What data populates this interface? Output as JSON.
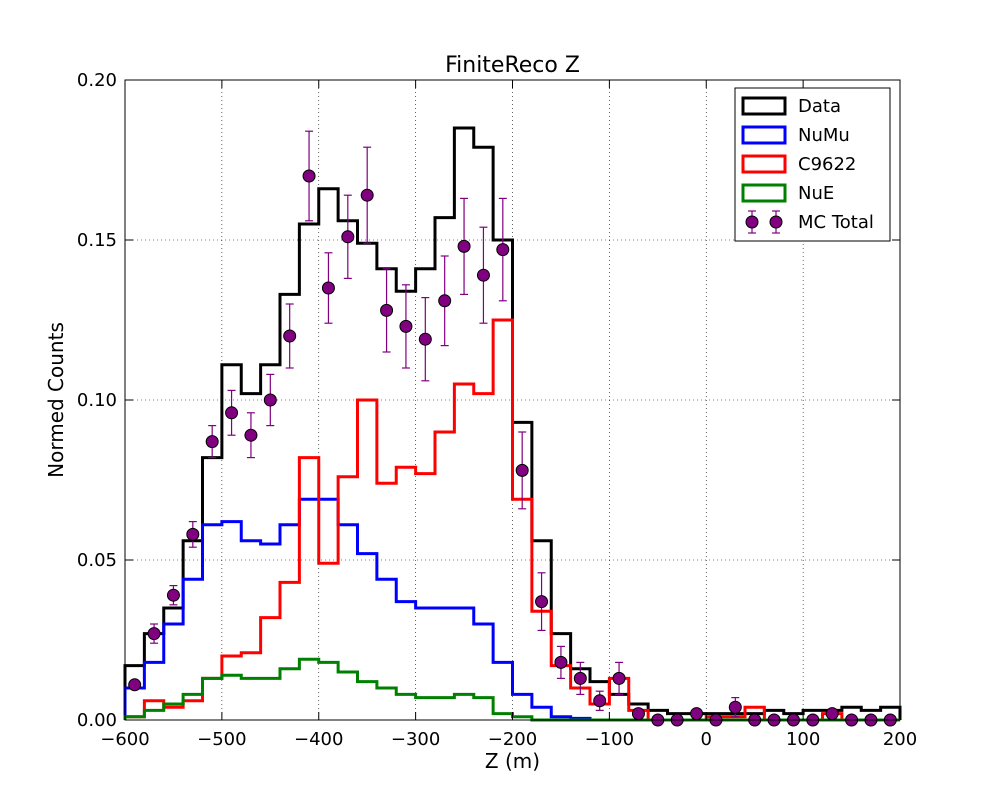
{
  "chart_data": {
    "type": "histogram",
    "title": "FiniteReco Z",
    "xlabel": "Z (m)",
    "ylabel": "Normed Counts",
    "xlim": [
      -600,
      200
    ],
    "ylim": [
      0,
      0.2
    ],
    "xticks": [
      -600,
      -500,
      -400,
      -300,
      -200,
      -100,
      0,
      100,
      200
    ],
    "xtick_labels": [
      "−600",
      "−500",
      "−400",
      "−300",
      "−200",
      "−100",
      "0",
      "100",
      "200"
    ],
    "yticks": [
      0,
      0.05,
      0.1,
      0.15,
      0.2
    ],
    "ytick_labels": [
      "0.00",
      "0.05",
      "0.10",
      "0.15",
      "0.20"
    ],
    "grid": true,
    "legend_position": "top-right",
    "bin_edges": [
      -600,
      -580,
      -560,
      -540,
      -520,
      -500,
      -480,
      -460,
      -440,
      -420,
      -400,
      -380,
      -360,
      -340,
      -320,
      -300,
      -280,
      -260,
      -240,
      -220,
      -200,
      -180,
      -160,
      -140,
      -120,
      -100,
      -80,
      -60,
      -40,
      -20,
      0,
      20,
      40,
      60,
      80,
      100,
      120,
      140,
      160,
      180,
      200
    ],
    "series": [
      {
        "name": "Data",
        "kind": "step",
        "color": "#000000",
        "values": [
          0.017,
          0.027,
          0.035,
          0.056,
          0.082,
          0.111,
          0.102,
          0.111,
          0.133,
          0.155,
          0.166,
          0.156,
          0.149,
          0.141,
          0.134,
          0.141,
          0.157,
          0.185,
          0.179,
          0.15,
          0.093,
          0.056,
          0.027,
          0.016,
          0.012,
          0.008,
          0.005,
          0.003,
          0.002,
          0.002,
          0.002,
          0.002,
          0.002,
          0.003,
          0.002,
          0.003,
          0.003,
          0.004,
          0.003,
          0.004
        ]
      },
      {
        "name": "NuMu",
        "kind": "step",
        "color": "#0000ff",
        "values": [
          0.01,
          0.018,
          0.03,
          0.044,
          0.061,
          0.062,
          0.056,
          0.055,
          0.061,
          0.069,
          0.069,
          0.061,
          0.052,
          0.044,
          0.037,
          0.035,
          0.035,
          0.035,
          0.03,
          0.018,
          0.008,
          0.004,
          0.001,
          0.0005,
          0,
          0,
          0,
          0,
          0,
          0,
          0,
          0,
          0,
          0,
          0,
          0,
          0,
          0,
          0,
          0
        ]
      },
      {
        "name": "C9622",
        "kind": "step",
        "color": "#ff0000",
        "values": [
          0.001,
          0.006,
          0.004,
          0.006,
          0.013,
          0.02,
          0.021,
          0.032,
          0.043,
          0.082,
          0.049,
          0.076,
          0.1,
          0.074,
          0.079,
          0.077,
          0.09,
          0.105,
          0.102,
          0.125,
          0.069,
          0.034,
          0.017,
          0.01,
          0.005,
          0.013,
          0.003,
          0,
          0,
          0,
          0.001,
          0.001,
          0.004,
          0,
          0,
          0,
          0.002,
          0,
          0,
          0
        ]
      },
      {
        "name": "NuE",
        "kind": "step",
        "color": "#008000",
        "values": [
          0.001,
          0.003,
          0.005,
          0.008,
          0.013,
          0.014,
          0.013,
          0.013,
          0.016,
          0.019,
          0.018,
          0.015,
          0.012,
          0.01,
          0.008,
          0.007,
          0.007,
          0.008,
          0.007,
          0.002,
          0.001,
          0,
          0,
          0,
          0,
          0,
          0,
          0,
          0,
          0,
          0,
          0,
          0,
          0,
          0,
          0,
          0,
          0,
          0,
          0
        ]
      },
      {
        "name": "MC Total",
        "kind": "points",
        "color": "#800080",
        "x": [
          -590,
          -570,
          -550,
          -530,
          -510,
          -490,
          -470,
          -450,
          -430,
          -410,
          -390,
          -370,
          -350,
          -330,
          -310,
          -290,
          -270,
          -250,
          -230,
          -210,
          -190,
          -170,
          -150,
          -130,
          -110,
          -90,
          -70,
          -50,
          -30,
          -10,
          10,
          30,
          50,
          70,
          90,
          110,
          130,
          150,
          170,
          190
        ],
        "y": [
          0.011,
          0.027,
          0.039,
          0.058,
          0.087,
          0.096,
          0.089,
          0.1,
          0.12,
          0.17,
          0.135,
          0.151,
          0.164,
          0.128,
          0.123,
          0.119,
          0.131,
          0.148,
          0.139,
          0.147,
          0.078,
          0.037,
          0.018,
          0.013,
          0.006,
          0.013,
          0.002,
          0,
          0,
          0.002,
          0,
          0.004,
          0,
          0,
          0,
          0,
          0.002,
          0,
          0,
          0
        ],
        "yerr": [
          0.001,
          0.003,
          0.003,
          0.004,
          0.005,
          0.007,
          0.007,
          0.008,
          0.01,
          0.014,
          0.011,
          0.013,
          0.015,
          0.013,
          0.013,
          0.013,
          0.014,
          0.015,
          0.015,
          0.016,
          0.012,
          0.009,
          0.005,
          0.005,
          0.003,
          0.005,
          0.001,
          0,
          0,
          0.001,
          0,
          0.003,
          0,
          0,
          0,
          0,
          0.001,
          0,
          0,
          0
        ]
      }
    ]
  }
}
